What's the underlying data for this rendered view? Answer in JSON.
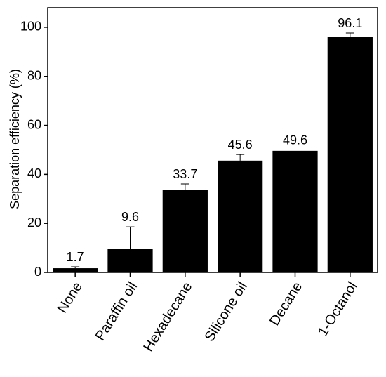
{
  "chart_data": {
    "type": "bar",
    "y_label": "Separation efficiency (%)",
    "categories": [
      "None",
      "Paraffin oil",
      "Hexadecane",
      "Silicone oil",
      "Decane",
      "1-Octanol"
    ],
    "values": [
      1.7,
      9.6,
      33.7,
      45.6,
      49.6,
      96.1
    ],
    "errors": [
      0.6,
      9.0,
      2.4,
      2.5,
      0.4,
      1.6
    ],
    "color": "#000000",
    "ylim": [
      0,
      108
    ],
    "yticks": [
      0,
      20,
      40,
      60,
      80,
      100
    ],
    "grid": false
  }
}
